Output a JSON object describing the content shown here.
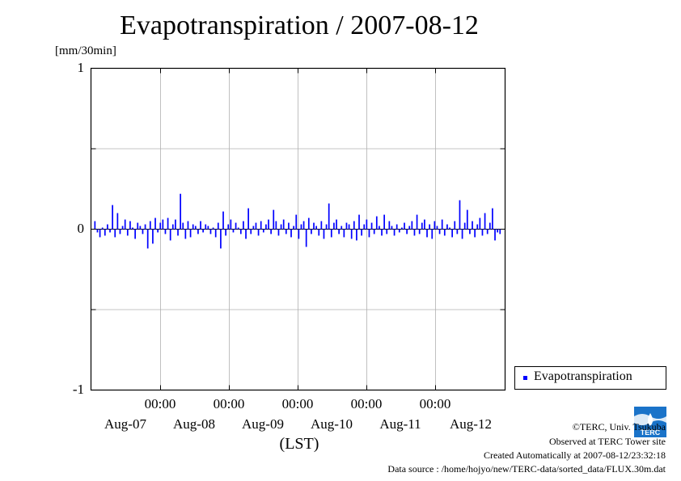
{
  "chart_data": {
    "type": "bar",
    "title": "Evapotranspiration / 2007-08-12",
    "ylabel": "[mm/30min]",
    "ylim": [
      -1,
      1
    ],
    "yticks": [
      "1",
      "0",
      "-1"
    ],
    "x_time_ticks": [
      "00:00",
      "00:00",
      "00:00",
      "00:00",
      "00:00"
    ],
    "x_date_labels": [
      "Aug-07",
      "Aug-08",
      "Aug-09",
      "Aug-10",
      "Aug-11",
      "Aug-12"
    ],
    "xlabel": "(LST)",
    "grid": true,
    "legend_position": "bottom-right, outside plot",
    "series": [
      {
        "name": "Evapotranspiration",
        "color": "#0000ff",
        "x_start": "2007-08-06 11:00",
        "x_interval": "30min",
        "values": [
          0.05,
          -0.02,
          -0.05,
          0.01,
          -0.04,
          0.03,
          -0.02,
          0.15,
          -0.05,
          0.1,
          -0.03,
          0.02,
          0.06,
          -0.04,
          0.05,
          0.01,
          -0.06,
          0.04,
          0.02,
          -0.03,
          0.03,
          -0.12,
          0.05,
          -0.09,
          0.07,
          -0.02,
          0.04,
          0.06,
          -0.03,
          0.07,
          -0.07,
          0.03,
          0.06,
          -0.04,
          0.22,
          0.04,
          -0.06,
          0.05,
          -0.05,
          0.03,
          0.02,
          -0.03,
          0.05,
          -0.02,
          0.03,
          0.02,
          -0.03,
          0.01,
          -0.05,
          0.04,
          -0.12,
          0.11,
          -0.04,
          0.03,
          0.06,
          -0.02,
          0.04,
          0.01,
          -0.03,
          0.05,
          -0.06,
          0.13,
          -0.03,
          0.02,
          0.04,
          -0.04,
          0.05,
          -0.02,
          0.03,
          0.06,
          -0.03,
          0.12,
          0.05,
          -0.04,
          0.03,
          0.06,
          -0.03,
          0.04,
          -0.05,
          0.02,
          0.09,
          -0.06,
          0.03,
          0.05,
          -0.11,
          0.07,
          -0.03,
          0.04,
          0.02,
          -0.04,
          0.05,
          -0.06,
          0.03,
          0.16,
          -0.05,
          0.04,
          0.06,
          -0.03,
          0.02,
          -0.05,
          0.04,
          0.03,
          -0.06,
          0.05,
          -0.07,
          0.09,
          -0.04,
          0.03,
          0.06,
          -0.05,
          0.04,
          -0.03,
          0.08,
          0.02,
          -0.04,
          0.09,
          -0.03,
          0.05,
          0.02,
          -0.04,
          0.03,
          -0.02,
          0.01,
          0.04,
          -0.03,
          0.02,
          0.05,
          -0.04,
          0.09,
          -0.03,
          0.04,
          0.06,
          -0.05,
          0.03,
          -0.06,
          0.05,
          0.02,
          -0.03,
          0.06,
          -0.04,
          0.03,
          0.01,
          -0.05,
          0.05,
          -0.03,
          0.18,
          -0.06,
          0.04,
          0.12,
          -0.03,
          0.05,
          -0.05,
          0.03,
          0.07,
          -0.04,
          0.1,
          -0.03,
          0.04,
          0.13,
          -0.07,
          -0.02,
          -0.03
        ]
      }
    ],
    "credits": [
      "©TERC, Univ. Tsukuba",
      "Observed at TERC Tower site",
      "Created Automatically at 2007-08-12/23:32:18",
      "Data source : /home/hojyo/new/TERC-data/sorted_data/FLUX.30m.dat"
    ],
    "logo_text": "TERC"
  }
}
